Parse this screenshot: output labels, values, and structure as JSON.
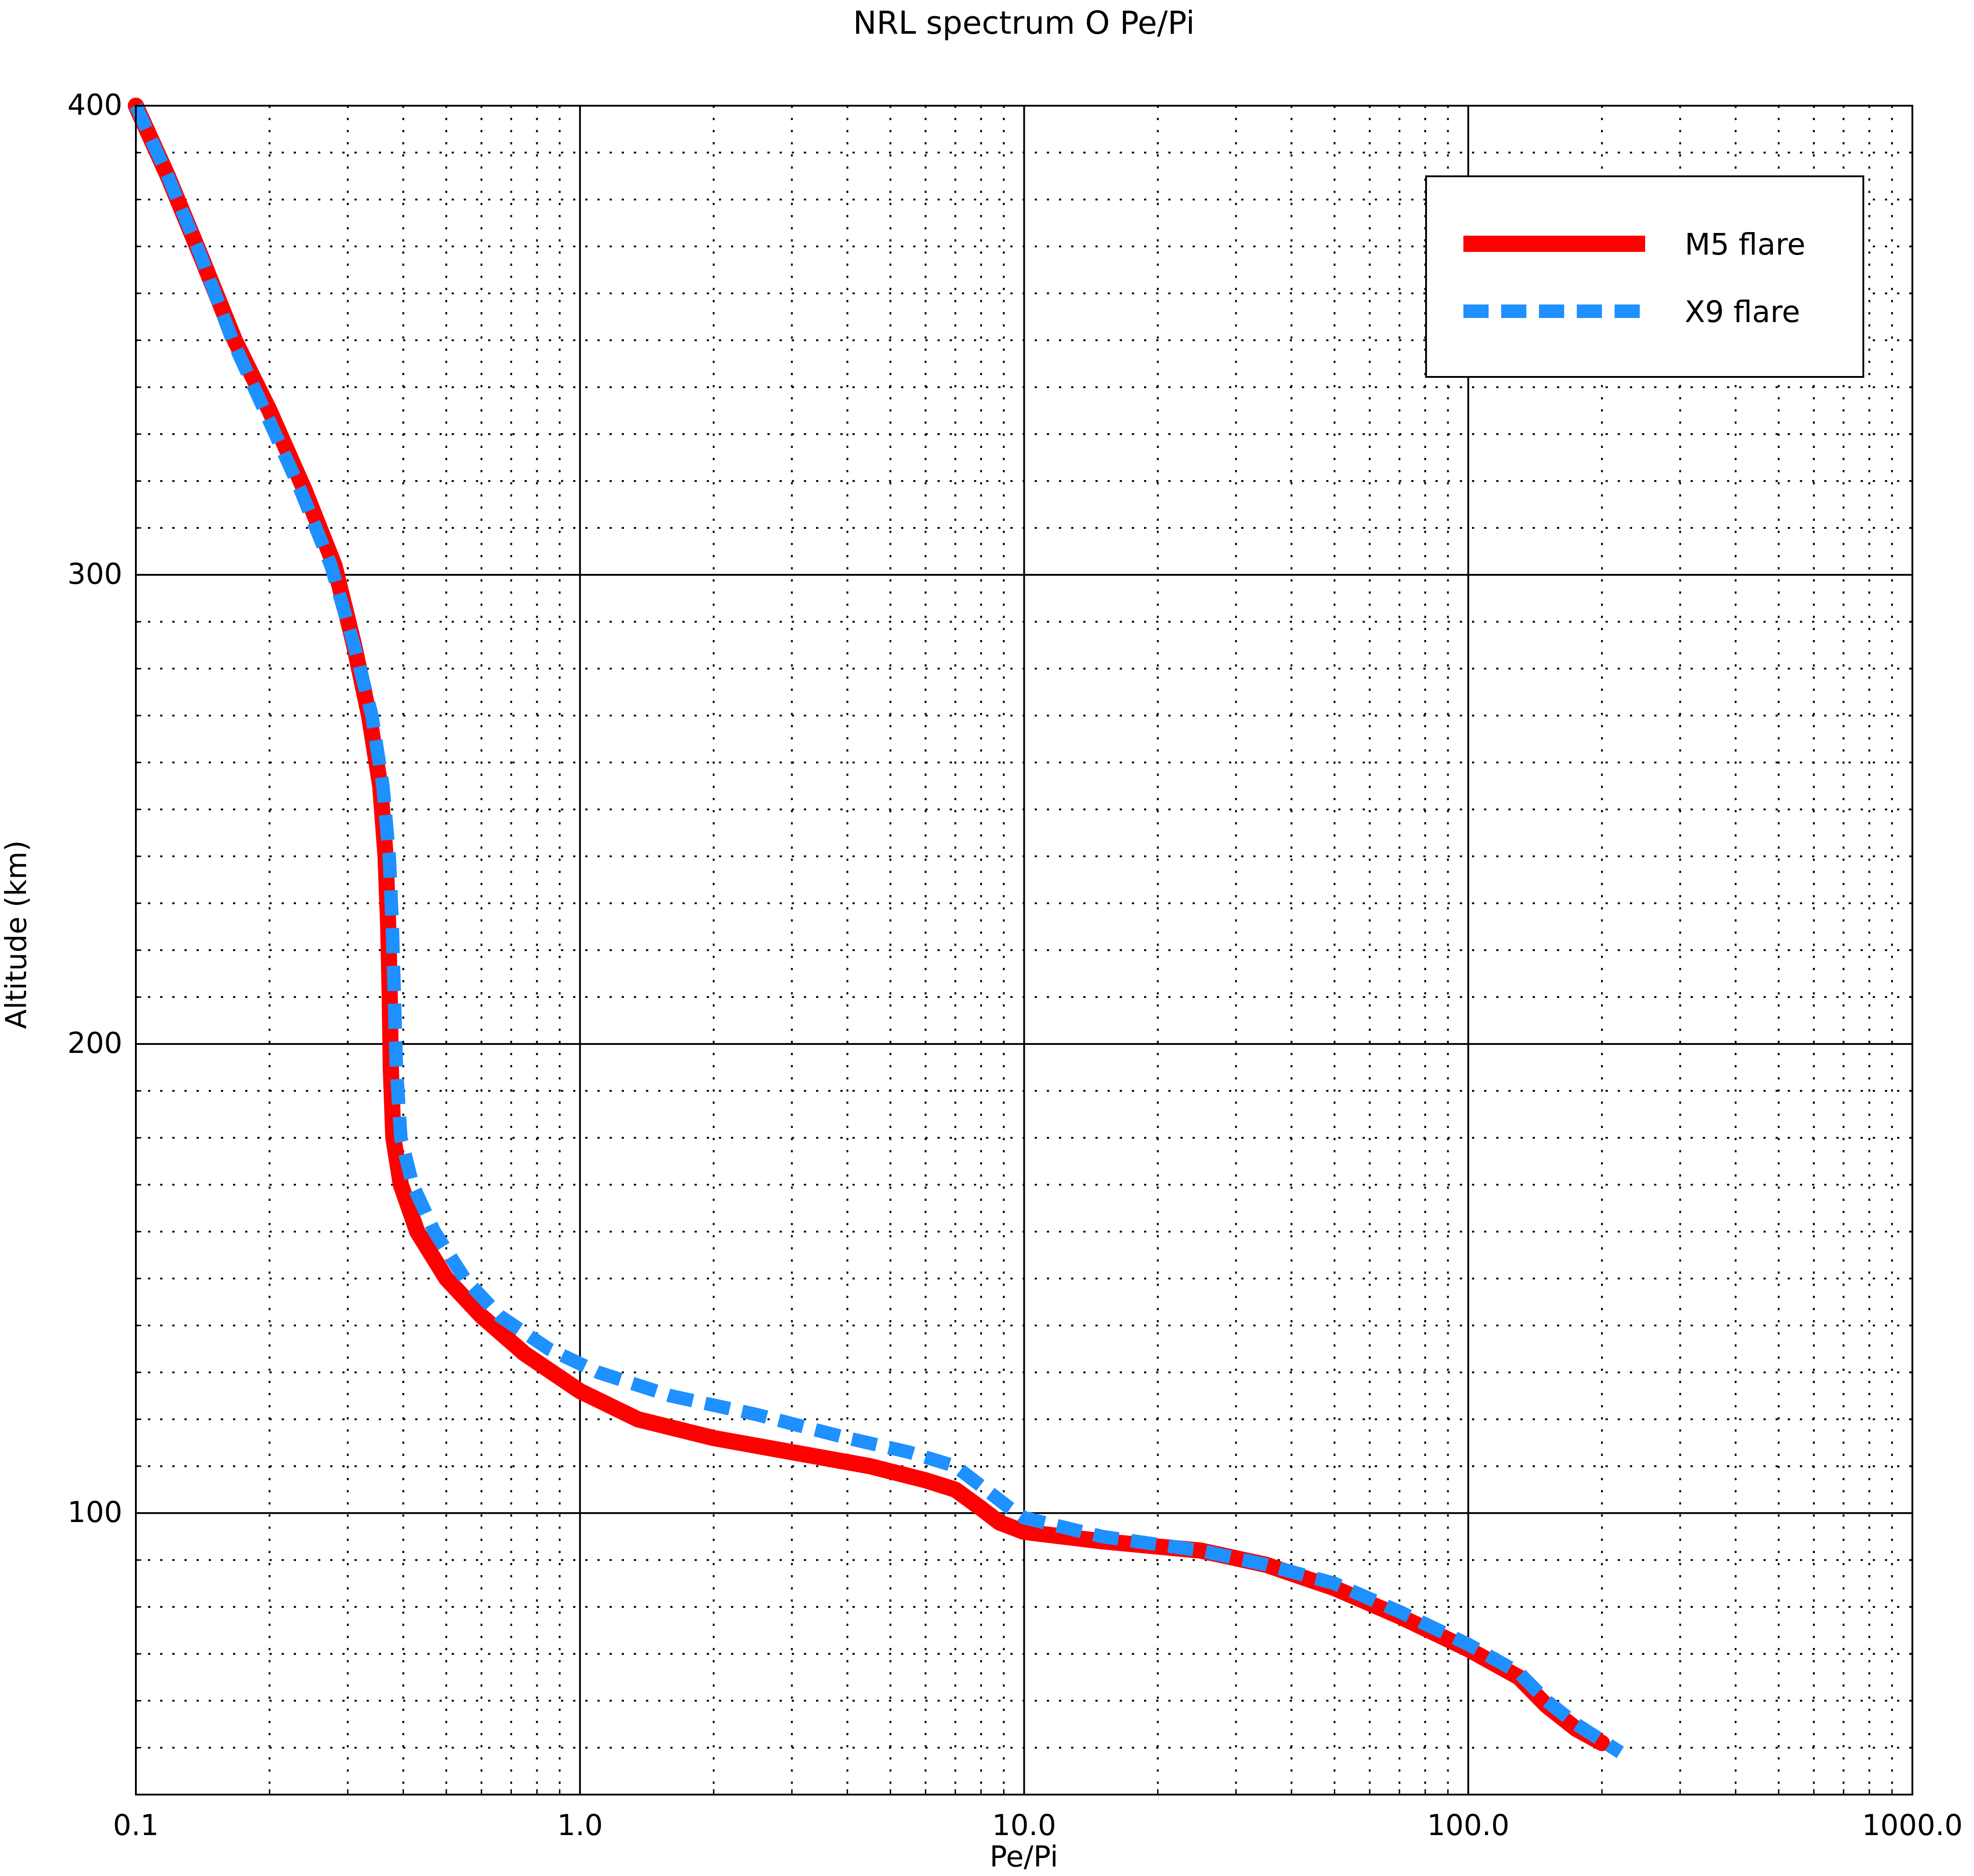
{
  "chart_data": {
    "type": "line",
    "title": "NRL spectrum O Pe/Pi",
    "xlabel": "Pe/Pi",
    "ylabel": "Altitude (km)",
    "xscale": "log",
    "xlim": [
      0.1,
      1000.0
    ],
    "ylim": [
      40,
      400
    ],
    "xticks": [
      {
        "value": 0.1,
        "label": "0.1"
      },
      {
        "value": 1.0,
        "label": "1.0"
      },
      {
        "value": 10.0,
        "label": "10.0"
      },
      {
        "value": 100.0,
        "label": "100.0"
      },
      {
        "value": 1000.0,
        "label": "1000.0"
      }
    ],
    "yticks": [
      {
        "value": 100,
        "label": "100"
      },
      {
        "value": 200,
        "label": "200"
      },
      {
        "value": 300,
        "label": "300"
      },
      {
        "value": 400,
        "label": "400"
      }
    ],
    "grid": "major solid, minor dotted",
    "legend": {
      "position": "top-right"
    },
    "series": [
      {
        "name": "M5 flare",
        "color": "#ff0000",
        "style": "solid",
        "points": [
          [
            0.1,
            400
          ],
          [
            0.118,
            385
          ],
          [
            0.14,
            368
          ],
          [
            0.167,
            350
          ],
          [
            0.2,
            335
          ],
          [
            0.24,
            318
          ],
          [
            0.28,
            302
          ],
          [
            0.31,
            285
          ],
          [
            0.335,
            270
          ],
          [
            0.355,
            255
          ],
          [
            0.365,
            240
          ],
          [
            0.37,
            225
          ],
          [
            0.373,
            210
          ],
          [
            0.375,
            195
          ],
          [
            0.38,
            180
          ],
          [
            0.395,
            170
          ],
          [
            0.43,
            160
          ],
          [
            0.5,
            150
          ],
          [
            0.6,
            142
          ],
          [
            0.75,
            134
          ],
          [
            1.0,
            126
          ],
          [
            1.35,
            120
          ],
          [
            2.0,
            116
          ],
          [
            3.0,
            113
          ],
          [
            4.5,
            110
          ],
          [
            6.0,
            107
          ],
          [
            7.0,
            105
          ],
          [
            8.0,
            101
          ],
          [
            8.8,
            98
          ],
          [
            10.0,
            96
          ],
          [
            15.0,
            94
          ],
          [
            25.0,
            92
          ],
          [
            35.0,
            89
          ],
          [
            50.0,
            84
          ],
          [
            70.0,
            78
          ],
          [
            100.0,
            71
          ],
          [
            130.0,
            65
          ],
          [
            150.0,
            59
          ],
          [
            175.0,
            54
          ],
          [
            200.0,
            51
          ]
        ]
      },
      {
        "name": "X9 flare",
        "color": "#1e90ff",
        "style": "dashed",
        "points": [
          [
            0.1,
            400
          ],
          [
            0.118,
            385
          ],
          [
            0.14,
            368
          ],
          [
            0.165,
            350
          ],
          [
            0.195,
            335
          ],
          [
            0.235,
            318
          ],
          [
            0.275,
            302
          ],
          [
            0.31,
            285
          ],
          [
            0.34,
            270
          ],
          [
            0.36,
            255
          ],
          [
            0.372,
            240
          ],
          [
            0.378,
            225
          ],
          [
            0.382,
            210
          ],
          [
            0.386,
            195
          ],
          [
            0.395,
            180
          ],
          [
            0.42,
            170
          ],
          [
            0.47,
            160
          ],
          [
            0.55,
            150
          ],
          [
            0.66,
            142
          ],
          [
            0.85,
            135
          ],
          [
            1.1,
            130
          ],
          [
            1.6,
            125
          ],
          [
            2.5,
            121
          ],
          [
            4.0,
            116
          ],
          [
            5.5,
            113
          ],
          [
            7.0,
            110
          ],
          [
            8.2,
            105
          ],
          [
            9.3,
            101
          ],
          [
            10.0,
            99
          ],
          [
            15.0,
            95
          ],
          [
            25.0,
            92
          ],
          [
            35.0,
            89
          ],
          [
            50.0,
            85
          ],
          [
            70.0,
            79
          ],
          [
            100.0,
            72
          ],
          [
            130.0,
            66
          ],
          [
            150.0,
            60
          ],
          [
            175.0,
            55
          ],
          [
            220.0,
            49
          ]
        ]
      }
    ]
  }
}
